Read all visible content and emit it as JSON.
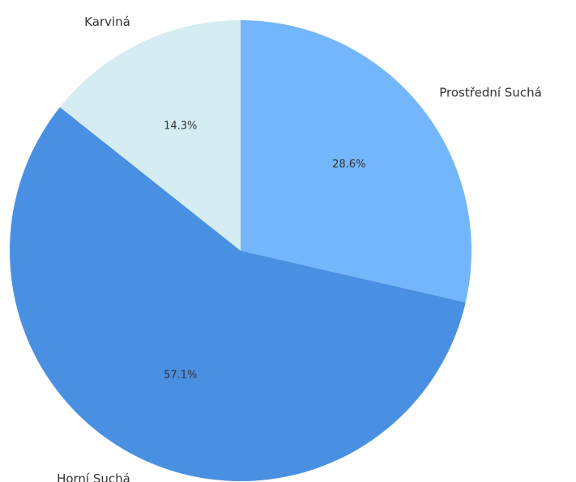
{
  "chart_data": {
    "type": "pie",
    "categories": [
      "Prostřední Suchá",
      "Horní Suchá",
      "Karviná"
    ],
    "values": [
      28.6,
      57.1,
      14.3
    ],
    "value_labels": [
      "28.6%",
      "57.1%",
      "14.3%"
    ],
    "colors": [
      "#74b6fb",
      "#4a90e2",
      "#d4ecf2"
    ]
  }
}
